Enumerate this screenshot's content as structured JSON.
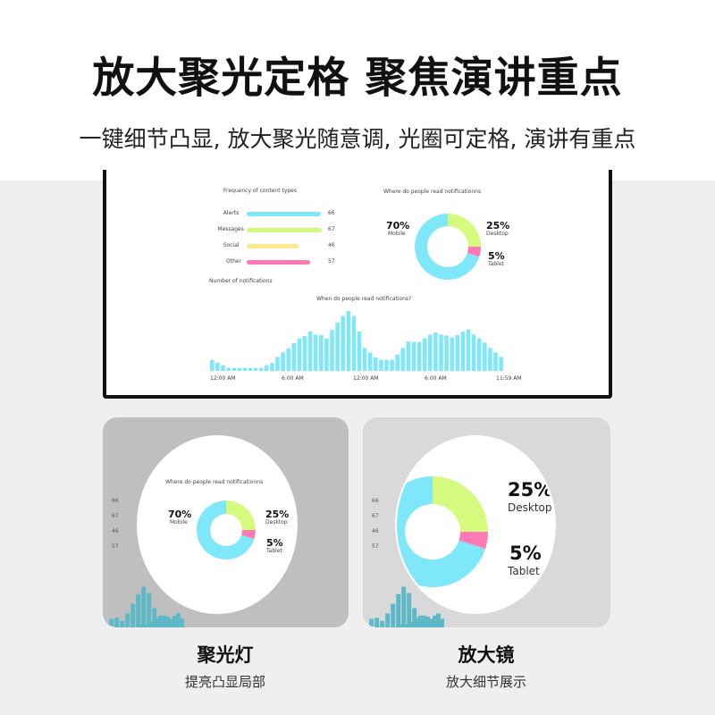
{
  "header": {
    "title": "放大聚光定格 聚焦演讲重点",
    "subtitle": "一键细节凸显, 放大聚光随意调, 光圈可定格, 演讲有重点"
  },
  "dashboard": {
    "freq": {
      "title": "Frequency of content types",
      "items": [
        {
          "label": "Alerts",
          "value": "66",
          "color": "#7ee8fa",
          "fill": 0.66
        },
        {
          "label": "Messages",
          "value": "67",
          "color": "#d4fa7e",
          "fill": 0.67
        },
        {
          "label": "Social",
          "value": "46",
          "color": "#fbe98c",
          "fill": 0.46
        },
        {
          "label": "Other",
          "value": "57",
          "color": "#fd7ab4",
          "fill": 0.57
        }
      ]
    },
    "donut": {
      "title": "Where do people read notificationns",
      "slices": [
        {
          "pct": "25%",
          "label": "Desktop",
          "value": 25,
          "color": "#d4fa7e"
        },
        {
          "pct": "5%",
          "label": "Tablet",
          "value": 5,
          "color": "#fd7ab4"
        },
        {
          "pct": "70%",
          "label": "Mobile",
          "value": 70,
          "color": "#7ee8fa"
        }
      ]
    },
    "count_label": "Number of notifications",
    "timeline": {
      "title": "When do people read notifications?",
      "ticks": [
        "12:00 AM",
        "6:00 AM",
        "12:00 AM",
        "6:00 AM",
        "11:59 AM"
      ],
      "values": [
        37,
        27,
        19,
        10,
        10,
        10,
        10,
        10,
        10,
        10,
        19,
        27,
        47,
        62,
        75,
        94,
        109,
        117,
        132,
        122,
        120,
        109,
        137,
        162,
        184,
        201,
        184,
        132,
        77,
        62,
        45,
        37,
        37,
        37,
        55,
        77,
        99,
        97,
        97,
        109,
        122,
        129,
        122,
        119,
        112,
        120,
        132,
        139,
        122,
        109,
        95,
        77,
        62,
        47
      ],
      "color": "#7ee8fa"
    }
  },
  "cards": [
    {
      "title": "聚光灯",
      "subtitle": "提亮凸显局部"
    },
    {
      "title": "放大镜",
      "subtitle": "放大细节展示"
    }
  ]
}
